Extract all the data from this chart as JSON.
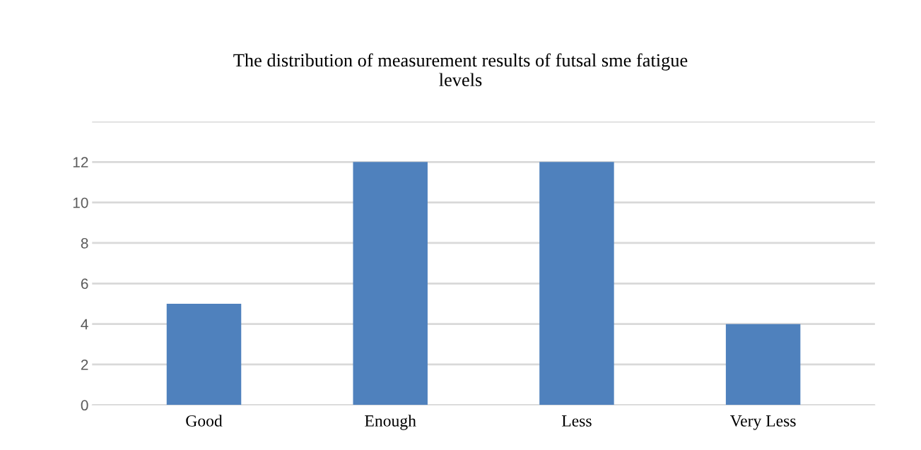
{
  "chart_data": {
    "type": "bar",
    "title": "The distribution of measurement results of futsal sme fatigue\nlevels",
    "categories": [
      "Good",
      "Enough",
      "Less",
      "Very Less"
    ],
    "values": [
      5,
      12,
      12,
      4
    ],
    "color": "#4f81bd",
    "ylim": [
      0,
      14
    ],
    "yticks": [
      0,
      2,
      4,
      6,
      8,
      10,
      12,
      {
        "value": 14,
        "label": null
      }
    ],
    "grid": "y"
  }
}
